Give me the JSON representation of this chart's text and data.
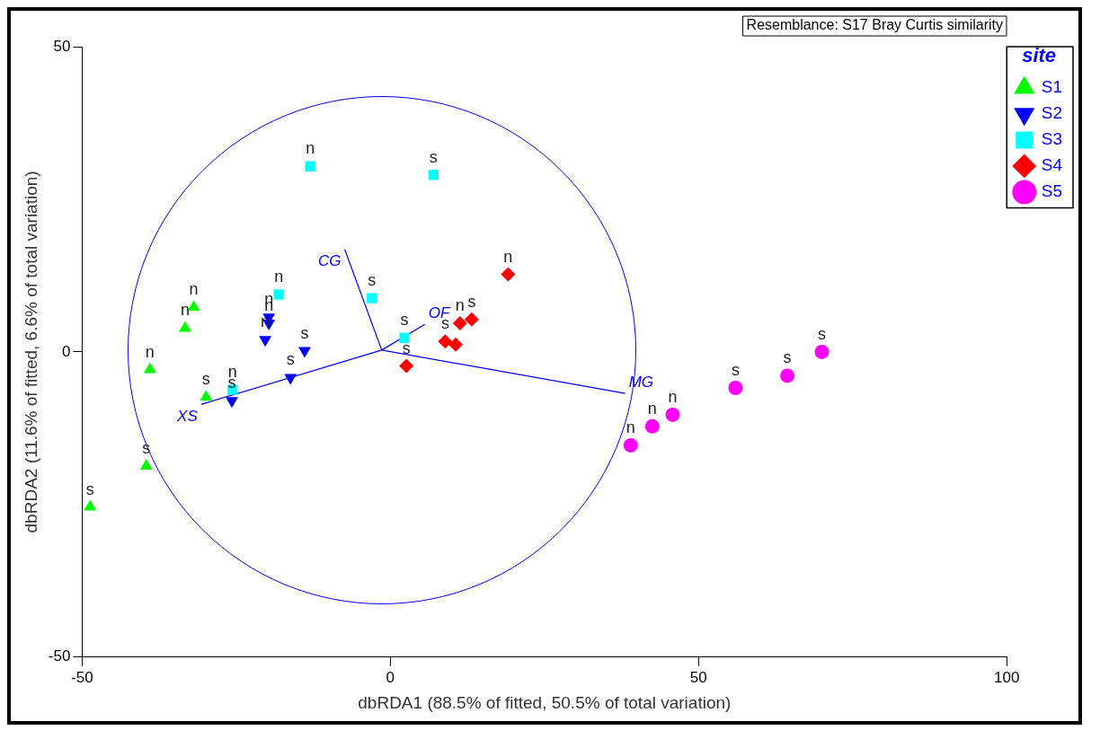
{
  "chart_data": {
    "type": "scatter",
    "xlabel": "dbRDA1 (88.5% of fitted, 50.5% of total variation)",
    "ylabel": "dbRDA2 (11.6% of fitted, 6.6% of total variation)",
    "legend_title": "site",
    "legend": "top right",
    "grid": false,
    "xlim": [
      -50,
      100
    ],
    "xticks": [
      -50,
      0,
      50,
      100
    ],
    "ylim": [
      -50,
      50
    ],
    "yticks": [
      -50,
      0,
      50
    ],
    "annotations": [
      "Resemblance: S17 Bray Curtis similarity"
    ],
    "series": [
      {
        "name": "S1",
        "color": "#00ff00",
        "marker": "triangle",
        "x": [
          -48.7,
          -39.6,
          -39.0,
          -29.9,
          -33.3,
          -31.9
        ],
        "values": [
          -25.4,
          -18.7,
          -2.9,
          -7.4,
          3.9,
          7.3
        ],
        "value_labels": [
          "s",
          "s",
          "n",
          "s",
          "n",
          "n"
        ]
      },
      {
        "name": "S2",
        "color": "#0000ff",
        "marker": "triangle-down",
        "x": [
          -25.7,
          -16.2,
          -13.9,
          -20.3,
          -19.7,
          -19.7
        ],
        "values": [
          -8.0,
          -4.2,
          0.2,
          2.0,
          4.7,
          5.7
        ],
        "value_labels": [
          "s",
          "s",
          "s",
          "n",
          "n",
          "n"
        ]
      },
      {
        "name": "S3",
        "color": "#00ffff",
        "marker": "square",
        "x": [
          -13.0,
          7.0,
          -18.1,
          -3.0,
          2.3,
          -25.6
        ],
        "values": [
          30.4,
          29.0,
          9.4,
          8.8,
          2.3,
          -6.2
        ],
        "value_labels": [
          "n",
          "s",
          "n",
          "s",
          "s",
          "n"
        ]
      },
      {
        "name": "S4",
        "color": "#ff0000",
        "marker": "diamond",
        "x": [
          19.1,
          13.2,
          11.3,
          8.9,
          10.6,
          2.6
        ],
        "values": [
          12.7,
          5.3,
          4.7,
          1.7,
          1.2,
          -2.3
        ],
        "value_labels": [
          "n",
          "s",
          "n",
          "s",
          null,
          "s"
        ]
      },
      {
        "name": "S5",
        "color": "#ff00ff",
        "marker": "circle",
        "x": [
          39.0,
          42.5,
          45.8,
          56.0,
          64.4,
          70.0
        ],
        "values": [
          -15.3,
          -12.2,
          -10.3,
          -5.9,
          -3.9,
          0.0
        ],
        "value_labels": [
          "n",
          "n",
          "n",
          "s",
          "s",
          "s"
        ]
      },
      {
        "name": "CG",
        "type": "line",
        "color": "#0000ff",
        "x": [
          -1.4,
          -7.4
        ],
        "values": [
          0.3,
          16.8
        ]
      },
      {
        "name": "OF",
        "type": "line",
        "color": "#0000ff",
        "x": [
          -1.4,
          5.6
        ],
        "values": [
          0.3,
          4.5
        ]
      },
      {
        "name": "MG",
        "type": "line",
        "color": "#0000ff",
        "x": [
          -1.4,
          38.1
        ],
        "values": [
          0.3,
          -6.8
        ]
      },
      {
        "name": "XS",
        "type": "line",
        "color": "#0000ff",
        "x": [
          -1.4,
          -30.7
        ],
        "values": [
          0.3,
          -8.6
        ]
      }
    ]
  }
}
